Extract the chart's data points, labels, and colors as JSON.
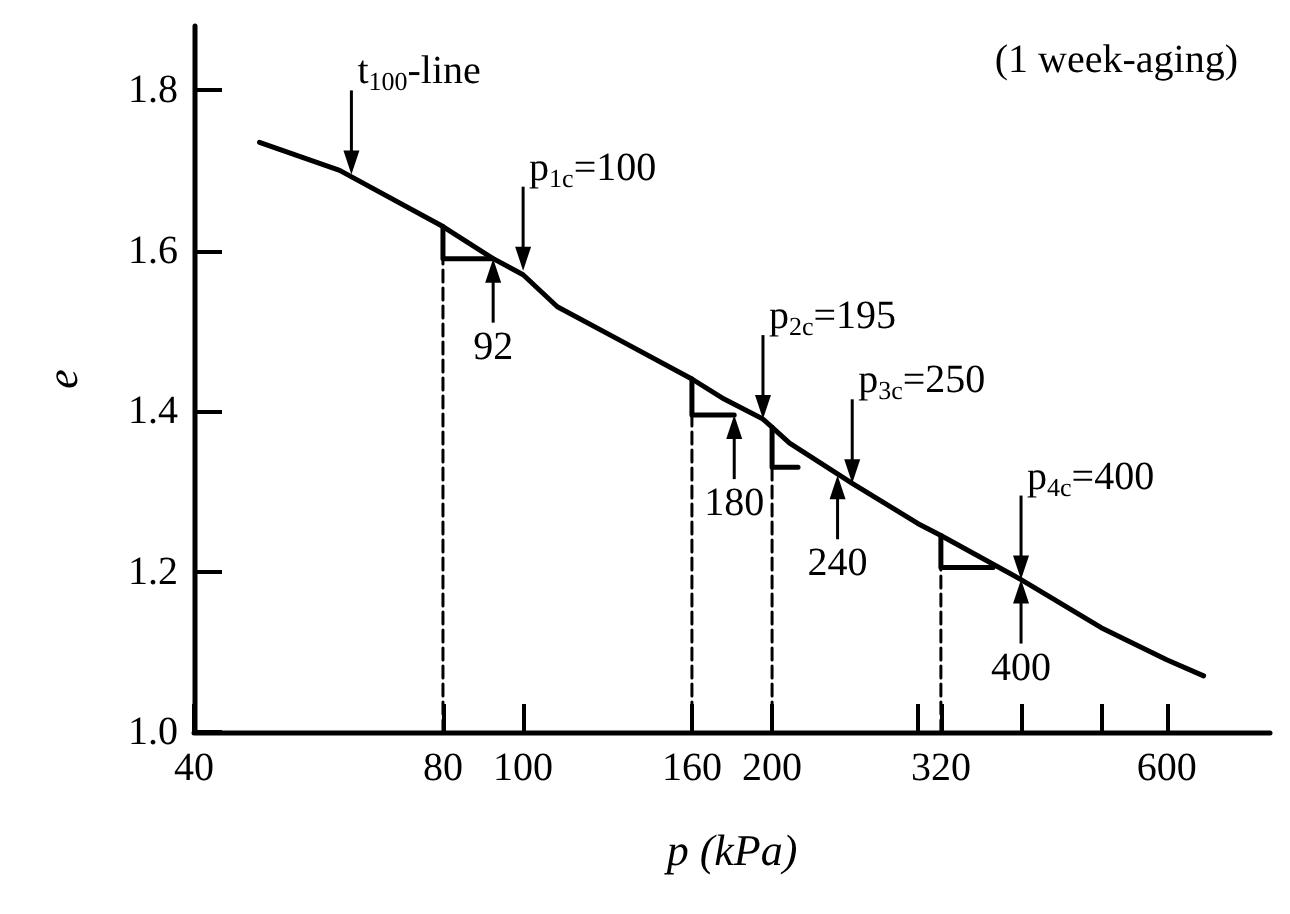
{
  "chart_data": {
    "type": "line",
    "xlabel": "p (kPa)",
    "ylabel": "e",
    "log": "x",
    "marker": "none",
    "grid": false,
    "xlim": [
      40,
      800
    ],
    "ylim": [
      1.0,
      1.88
    ],
    "xticks": [
      40,
      80,
      100,
      160,
      200,
      {
        "value": 300,
        "label": null
      },
      320,
      {
        "value": 400,
        "label": null
      },
      {
        "value": 500,
        "label": null
      },
      600
    ],
    "yticks": [
      {
        "value": 1,
        "label": "1.0"
      },
      1.2,
      1.4,
      1.6,
      1.8
    ],
    "series": [
      {
        "color": "#000000",
        "x": [
          48,
          60,
          80,
          92,
          100,
          110,
          130,
          160,
          175,
          195,
          210,
          250,
          300,
          320,
          400,
          500,
          600,
          665
        ],
        "values": [
          1.735,
          1.7,
          1.63,
          1.59,
          1.57,
          1.53,
          1.49,
          1.44,
          1.415,
          1.39,
          1.36,
          1.31,
          1.26,
          1.245,
          1.19,
          1.13,
          1.09,
          1.07
        ]
      },
      {
        "color": "#000000",
        "x": [
          80,
          80,
          92
        ],
        "values": [
          1.63,
          1.59,
          1.59
        ]
      },
      {
        "color": "#000000",
        "x": [
          160,
          160,
          180
        ],
        "values": [
          1.44,
          1.395,
          1.395
        ]
      },
      {
        "color": "#000000",
        "x": [
          200,
          200,
          215
        ],
        "values": [
          1.38,
          1.33,
          1.33
        ]
      },
      {
        "color": "#000000",
        "x": [
          320,
          320,
          370
        ],
        "values": [
          1.245,
          1.205,
          1.205
        ]
      },
      {
        "color": "#000000",
        "line_style": "dashed",
        "x": [
          80,
          80
        ],
        "values": [
          1.0,
          1.59
        ]
      },
      {
        "color": "#000000",
        "line_style": "dashed",
        "x": [
          160,
          160
        ],
        "values": [
          1.0,
          1.395
        ]
      },
      {
        "color": "#000000",
        "line_style": "dashed",
        "x": [
          200,
          200
        ],
        "values": [
          1.0,
          1.33
        ]
      },
      {
        "color": "#000000",
        "line_style": "dashed",
        "x": [
          320,
          320
        ],
        "values": [
          1.0,
          1.205
        ]
      }
    ],
    "annotations": [
      {
        "text": "p$_{1c}$=100",
        "x": 100,
        "y": 1.575
      },
      {
        "text": "92",
        "x": 92,
        "y": 1.59
      },
      {
        "text": "p$_{2c}$=195",
        "x": 195,
        "y": 1.39
      },
      {
        "text": "180",
        "x": 180,
        "y": 1.395
      },
      {
        "text": "p$_{3c}$=250",
        "x": 250,
        "y": 1.31
      },
      {
        "text": "240",
        "x": 240,
        "y": 1.32
      },
      {
        "text": "p$_{4c}$=400",
        "x": 400,
        "y": 1.19
      },
      {
        "text": "400",
        "x": 400,
        "y": 1.19
      },
      {
        "text": "t$_{100}$-line",
        "x": 62,
        "y": 1.695
      },
      "(1 week-aging)"
    ]
  }
}
